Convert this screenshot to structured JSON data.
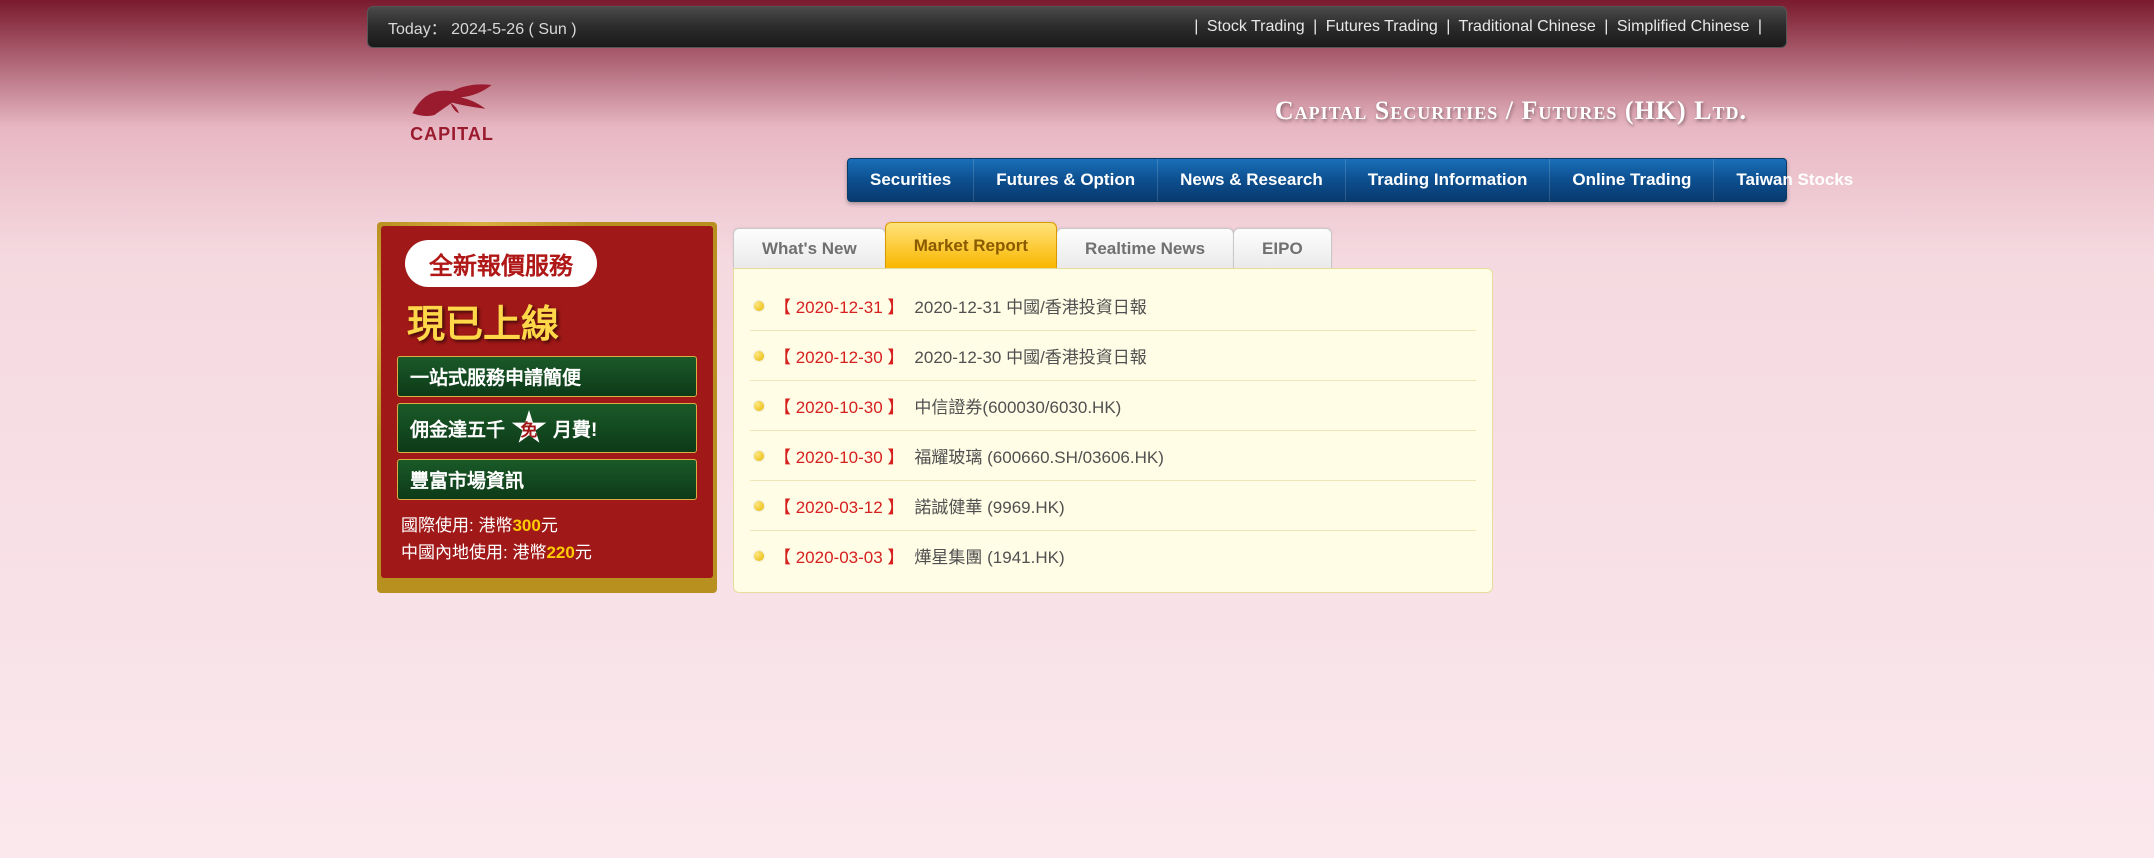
{
  "topbar": {
    "today_label": "Today：",
    "today_value": "2024-5-26 ( Sun )",
    "links": [
      {
        "label": "Stock Trading"
      },
      {
        "label": "Futures Trading"
      },
      {
        "label": "Traditional Chinese"
      },
      {
        "label": "Simplified Chinese"
      }
    ]
  },
  "logo": {
    "text": "CAPITAL",
    "brand_color": "#9a1a2e"
  },
  "company_name": "Capital Securities / Futures (HK) Ltd.",
  "mainnav": [
    "Securities",
    "Futures & Option",
    "News & Research",
    "Trading Information",
    "Online Trading",
    "Taiwan Stocks"
  ],
  "promo": {
    "badge": "全新報價服務",
    "headline": "現已上線",
    "line1": "一站式服務申請簡便",
    "line2_a": "佣金達五千",
    "line2_star": "免",
    "line2_b": "月費!",
    "line3": "豐富市場資訊",
    "foot1_a": "國際使用: 港幣",
    "foot1_b": "300",
    "foot1_c": "元",
    "foot2_a": "中國內地使用: 港幣",
    "foot2_b": "220",
    "foot2_c": "元"
  },
  "tabs": [
    {
      "label": "What's New",
      "active": false
    },
    {
      "label": "Market Report",
      "active": true
    },
    {
      "label": "Realtime News",
      "active": false
    },
    {
      "label": "EIPO",
      "active": false
    }
  ],
  "reports": [
    {
      "date": "2020-12-31",
      "title": "2020-12-31 中國/香港投資日報"
    },
    {
      "date": "2020-12-30",
      "title": "2020-12-30 中國/香港投資日報"
    },
    {
      "date": "2020-10-30",
      "title": "中信證券(600030/6030.HK)"
    },
    {
      "date": "2020-10-30",
      "title": "福耀玻璃 (600660.SH/03606.HK)"
    },
    {
      "date": "2020-03-12",
      "title": "諾誠健華 (9969.HK)"
    },
    {
      "date": "2020-03-03",
      "title": "燁星集團 (1941.HK)"
    }
  ],
  "colors": {
    "nav_bg": "#0d4f8f",
    "accent_red": "#a01818",
    "tab_active": "#f9b700",
    "panel_bg": "#fffde6"
  }
}
